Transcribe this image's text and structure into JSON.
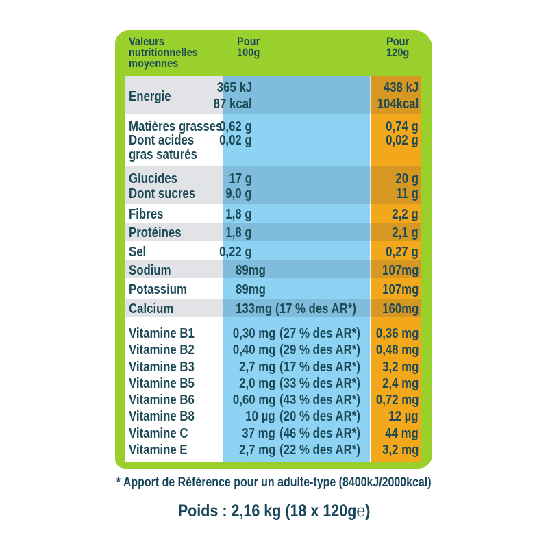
{
  "header": {
    "label_lines": [
      "Valeurs",
      "nutritionnelles",
      "moyennes"
    ],
    "per100_lines": [
      "Pour",
      "100g"
    ],
    "per120_lines": [
      "Pour",
      "120g"
    ]
  },
  "rows": {
    "energie": {
      "label": "Energie",
      "kj100": "365 kJ",
      "kcal100": "87 kcal",
      "kj120": "438 kJ",
      "kcal120": "104kcal"
    },
    "matieres": {
      "label": "Matières grasses",
      "v100": "0,62 g",
      "v120": "0,74 g"
    },
    "acides": {
      "label1": "Dont acides",
      "label2": "gras saturés",
      "v100": "0,02 g",
      "v120": "0,02 g"
    },
    "glucides": {
      "label": "Glucides",
      "v100": "17 g",
      "v120": "20 g"
    },
    "sucres": {
      "label": "Dont sucres",
      "v100": "9,0 g",
      "v120": "11 g"
    },
    "fibres": {
      "label": "Fibres",
      "v100": "1,8 g",
      "v120": "2,2 g"
    },
    "proteines": {
      "label": "Protéines",
      "v100": "1,8 g",
      "v120": "2,1 g"
    },
    "sel": {
      "label": "Sel",
      "v100": "0,22 g",
      "v120": "0,27 g"
    },
    "sodium": {
      "label": "Sodium",
      "v100": "89mg",
      "v120": "107mg"
    },
    "potassium": {
      "label": "Potassium",
      "v100": "89mg",
      "v120": "107mg"
    },
    "calcium": {
      "label": "Calcium",
      "v100": "133mg",
      "ar": "(17 % des AR*)",
      "v120": "160mg"
    },
    "b1": {
      "label": "Vitamine B1",
      "v100": "0,30 mg",
      "ar": "(27 % des AR*)",
      "v120": "0,36 mg"
    },
    "b2": {
      "label": "Vitamine B2",
      "v100": "0,40 mg",
      "ar": "(29 % des AR*)",
      "v120": "0,48 mg"
    },
    "b3": {
      "label": "Vitamine B3",
      "v100": "2,7 mg",
      "ar": "(17 % des AR*)",
      "v120": "3,2 mg"
    },
    "b5": {
      "label": "Vitamine B5",
      "v100": "2,0 mg",
      "ar": "(33 % des AR*)",
      "v120": "2,4 mg"
    },
    "b6": {
      "label": "Vitamine B6",
      "v100": "0,60 mg",
      "ar": "(43 % des AR*)",
      "v120": "0,72 mg"
    },
    "b8": {
      "label": "Vitamine B8",
      "v100": "10 µg",
      "ar": "(20 % des AR*)",
      "v120": "12 µg"
    },
    "c": {
      "label": "Vitamine C",
      "v100": "37 mg",
      "ar": "(46 % des AR*)",
      "v120": "44 mg"
    },
    "e": {
      "label": "Vitamine E",
      "v100": "2,7 mg",
      "ar": "(22 % des AR*)",
      "v120": "3,2 mg"
    }
  },
  "footnote": "* Apport de Référence pour un adulte-type (8400kJ/2000kcal)",
  "weight": "Poids : 2,16 kg (18 x 120g℮)",
  "colors": {
    "panel": "#9ad02b",
    "per100": "#8fd3f4",
    "per120": "#f3a81c",
    "text": "#17455a"
  }
}
